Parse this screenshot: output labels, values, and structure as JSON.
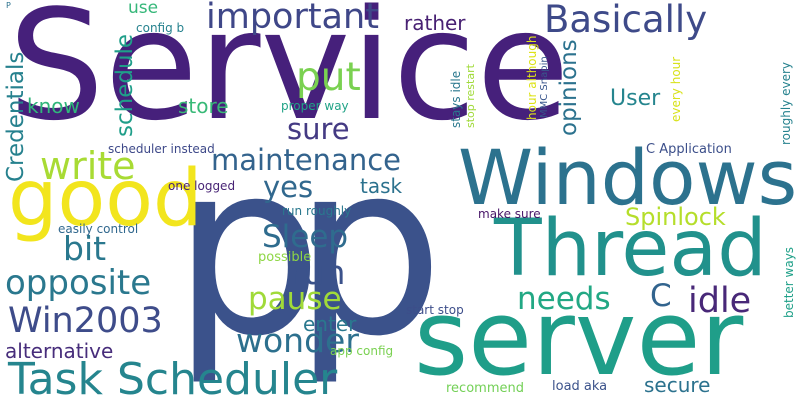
{
  "cloud": {
    "words": [
      {
        "text": "Service",
        "color": "#46207b"
      },
      {
        "text": "p",
        "color": "#3b528b"
      },
      {
        "text": "p",
        "color": "#3b528b"
      },
      {
        "text": "server",
        "color": "#1f9e89"
      },
      {
        "text": "Windows",
        "color": "#2c728e"
      },
      {
        "text": "Thread",
        "color": "#21918c"
      },
      {
        "text": "good",
        "color": "#f2e51d"
      },
      {
        "text": "Task Scheduler",
        "color": "#25858e"
      },
      {
        "text": "Basically",
        "color": "#3e4a89"
      },
      {
        "text": "important",
        "color": "#3f4788"
      },
      {
        "text": "maintenance",
        "color": "#33638d"
      },
      {
        "text": "write",
        "color": "#a8db34"
      },
      {
        "text": "opposite",
        "color": "#2a788e"
      },
      {
        "text": "Win2003",
        "color": "#3e4c8a"
      },
      {
        "text": "wonder",
        "color": "#2d708e"
      },
      {
        "text": "put",
        "color": "#7ad151"
      },
      {
        "text": "sure",
        "color": "#443a83"
      },
      {
        "text": "yes",
        "color": "#31688e"
      },
      {
        "text": "Sleep",
        "color": "#2f6c8e"
      },
      {
        "text": "run",
        "color": "#3b528b"
      },
      {
        "text": "pause",
        "color": "#a0da39"
      },
      {
        "text": "needs",
        "color": "#22a884"
      },
      {
        "text": "idle",
        "color": "#482878"
      },
      {
        "text": "bit",
        "color": "#2a788e"
      },
      {
        "text": "alternative",
        "color": "#472d7b"
      },
      {
        "text": "Spinlock",
        "color": "#b5de2b"
      },
      {
        "text": "C",
        "color": "#32648e"
      },
      {
        "text": "enter",
        "color": "#2a788e"
      },
      {
        "text": "secure",
        "color": "#2c728e"
      },
      {
        "text": "User",
        "color": "#25858e"
      },
      {
        "text": "Credentials",
        "color": "#26818e"
      },
      {
        "text": "schedule",
        "color": "#1f9e89"
      },
      {
        "text": "opinions",
        "color": "#2c728e"
      },
      {
        "text": "know",
        "color": "#31b57b"
      },
      {
        "text": "store",
        "color": "#38b977"
      },
      {
        "text": "task",
        "color": "#2c728e"
      },
      {
        "text": "rather",
        "color": "#482173"
      },
      {
        "text": "use",
        "color": "#35b779"
      },
      {
        "text": "config b",
        "color": "#26828e"
      },
      {
        "text": "proper way",
        "color": "#20a386"
      },
      {
        "text": "stays idle",
        "color": "#2a788e"
      },
      {
        "text": "stop restart",
        "color": "#a0da39"
      },
      {
        "text": "hour although",
        "color": "#dde318"
      },
      {
        "text": "MMC Snapin",
        "color": "#39568c"
      },
      {
        "text": "every hour",
        "color": "#d8e219"
      },
      {
        "text": "roughly every",
        "color": "#26828e"
      },
      {
        "text": "C Application",
        "color": "#3c4f8a"
      },
      {
        "text": "scheduler instead",
        "color": "#3e4989"
      },
      {
        "text": "one logged",
        "color": "#482475"
      },
      {
        "text": "run roughly",
        "color": "#2a788e"
      },
      {
        "text": "easily control",
        "color": "#31688e"
      },
      {
        "text": "make sure",
        "color": "#481668"
      },
      {
        "text": "possible",
        "color": "#8ed645"
      },
      {
        "text": "better ways",
        "color": "#1fa088"
      },
      {
        "text": "app config",
        "color": "#7ad151"
      },
      {
        "text": "start stop",
        "color": "#3d4e8a"
      },
      {
        "text": "recommend",
        "color": "#73d056"
      },
      {
        "text": "load aka",
        "color": "#3b528b"
      },
      {
        "text": "P",
        "color": "#2c728e"
      }
    ]
  }
}
